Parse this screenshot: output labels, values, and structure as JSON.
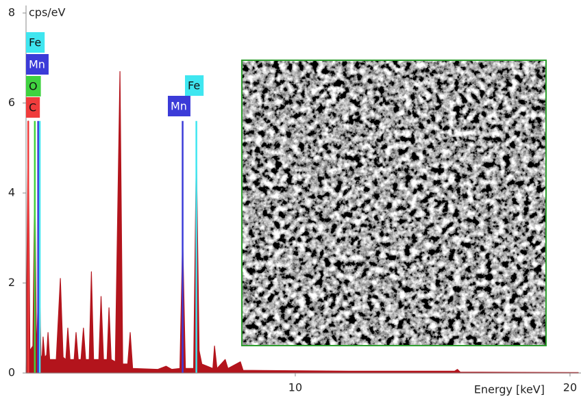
{
  "chart_data": {
    "type": "area",
    "y_label": "cps/eV",
    "x_label": "Energy [keV]",
    "color": "#b3141c",
    "x": [
      0.2,
      0.28,
      0.34,
      0.45,
      0.52,
      0.58,
      0.64,
      0.67,
      0.7,
      0.74,
      0.78,
      0.82,
      0.88,
      0.95,
      1.0,
      1.06,
      1.3,
      1.45,
      1.55,
      1.65,
      1.72,
      1.8,
      1.95,
      2.02,
      2.1,
      2.2,
      2.29,
      2.37,
      2.5,
      2.58,
      2.66,
      2.85,
      2.93,
      3.02,
      3.15,
      3.22,
      3.3,
      3.45,
      3.62,
      3.72,
      3.9,
      3.99,
      4.08,
      5.0,
      5.3,
      5.5,
      5.8,
      5.9,
      6.0,
      6.3,
      6.4,
      6.5,
      6.6,
      7.0,
      7.06,
      7.15,
      7.45,
      7.55,
      8.0,
      8.1,
      10,
      12,
      15.8,
      15.9,
      16,
      20,
      20.3
    ],
    "values": [
      0.1,
      5.6,
      0.5,
      0.6,
      4.5,
      0.4,
      1.6,
      0.5,
      1.8,
      0.4,
      0.3,
      0.8,
      0.35,
      0.4,
      0.9,
      0.3,
      0.3,
      2.1,
      0.35,
      0.3,
      1.0,
      0.3,
      0.3,
      0.9,
      0.3,
      0.3,
      1.0,
      0.3,
      0.3,
      2.25,
      0.3,
      0.3,
      1.7,
      0.3,
      0.3,
      1.45,
      0.3,
      0.25,
      6.7,
      0.2,
      0.2,
      0.9,
      0.1,
      0.08,
      0.15,
      0.08,
      0.1,
      3.0,
      0.1,
      0.1,
      4.95,
      0.5,
      0.2,
      0.1,
      0.6,
      0.1,
      0.3,
      0.1,
      0.25,
      0.06,
      0.05,
      0.04,
      0.04,
      0.08,
      0.02,
      0.01,
      0.01
    ],
    "markers": [
      {
        "name": "Fe",
        "color": "#3fe6f0",
        "energy": 0.7,
        "height": 5.6
      },
      {
        "name": "Mn",
        "color": "#3b3bd8",
        "energy": 0.64,
        "height": 5.6
      },
      {
        "name": "O",
        "color": "#3fd23f",
        "energy": 0.52,
        "height": 5.6
      },
      {
        "name": "C",
        "color": "#f03c3c",
        "energy": 0.28,
        "height": 5.6
      },
      {
        "name": "Fe",
        "color": "#3fe6f0",
        "energy": 6.4,
        "height": 5.6
      },
      {
        "name": "Mn",
        "color": "#3b3bd8",
        "energy": 5.9,
        "height": 5.6
      }
    ],
    "xlim": [
      0.2,
      20.4
    ],
    "ylim": [
      0,
      8
    ],
    "xticks": [
      10,
      20
    ],
    "yticks": [
      0,
      2,
      4,
      6,
      8
    ]
  }
}
